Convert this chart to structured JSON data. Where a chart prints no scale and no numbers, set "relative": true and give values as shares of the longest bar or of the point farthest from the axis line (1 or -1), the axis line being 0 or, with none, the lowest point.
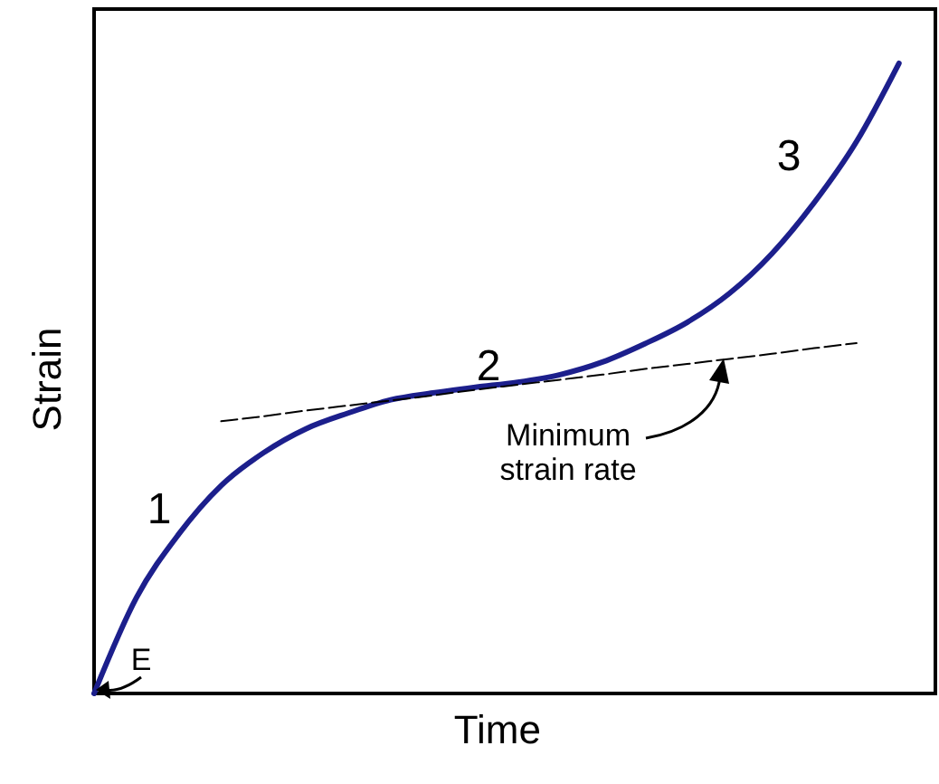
{
  "chart_data": {
    "type": "line",
    "relative": true,
    "xlabel": "Time",
    "ylabel": "Strain",
    "categories": [
      null,
      null,
      null,
      null,
      null,
      null,
      null,
      null,
      null,
      null,
      null,
      null,
      null,
      null,
      null,
      null,
      null,
      null,
      null,
      null
    ],
    "series": [
      {
        "color": "#1c1f8c",
        "line_style": "solid",
        "values": [
          0,
          0.152,
          0.253,
          0.33,
          0.382,
          0.42,
          0.445,
          0.466,
          0.477,
          0.486,
          0.494,
          0.506,
          0.526,
          0.555,
          0.589,
          0.635,
          0.698,
          0.779,
          0.876,
          1
        ]
      },
      {
        "color": "#000000",
        "line_style": "dashed",
        "values": [
          null,
          null,
          null,
          0.432,
          0.44,
          0.449,
          0.457,
          0.465,
          0.473,
          0.482,
          0.49,
          0.498,
          0.506,
          0.515,
          0.523,
          0.531,
          0.539,
          0.548,
          0.556,
          null
        ]
      }
    ],
    "annotations": [
      "1",
      "2",
      "3",
      "Minimum strain rate",
      "E"
    ],
    "grid": false
  }
}
